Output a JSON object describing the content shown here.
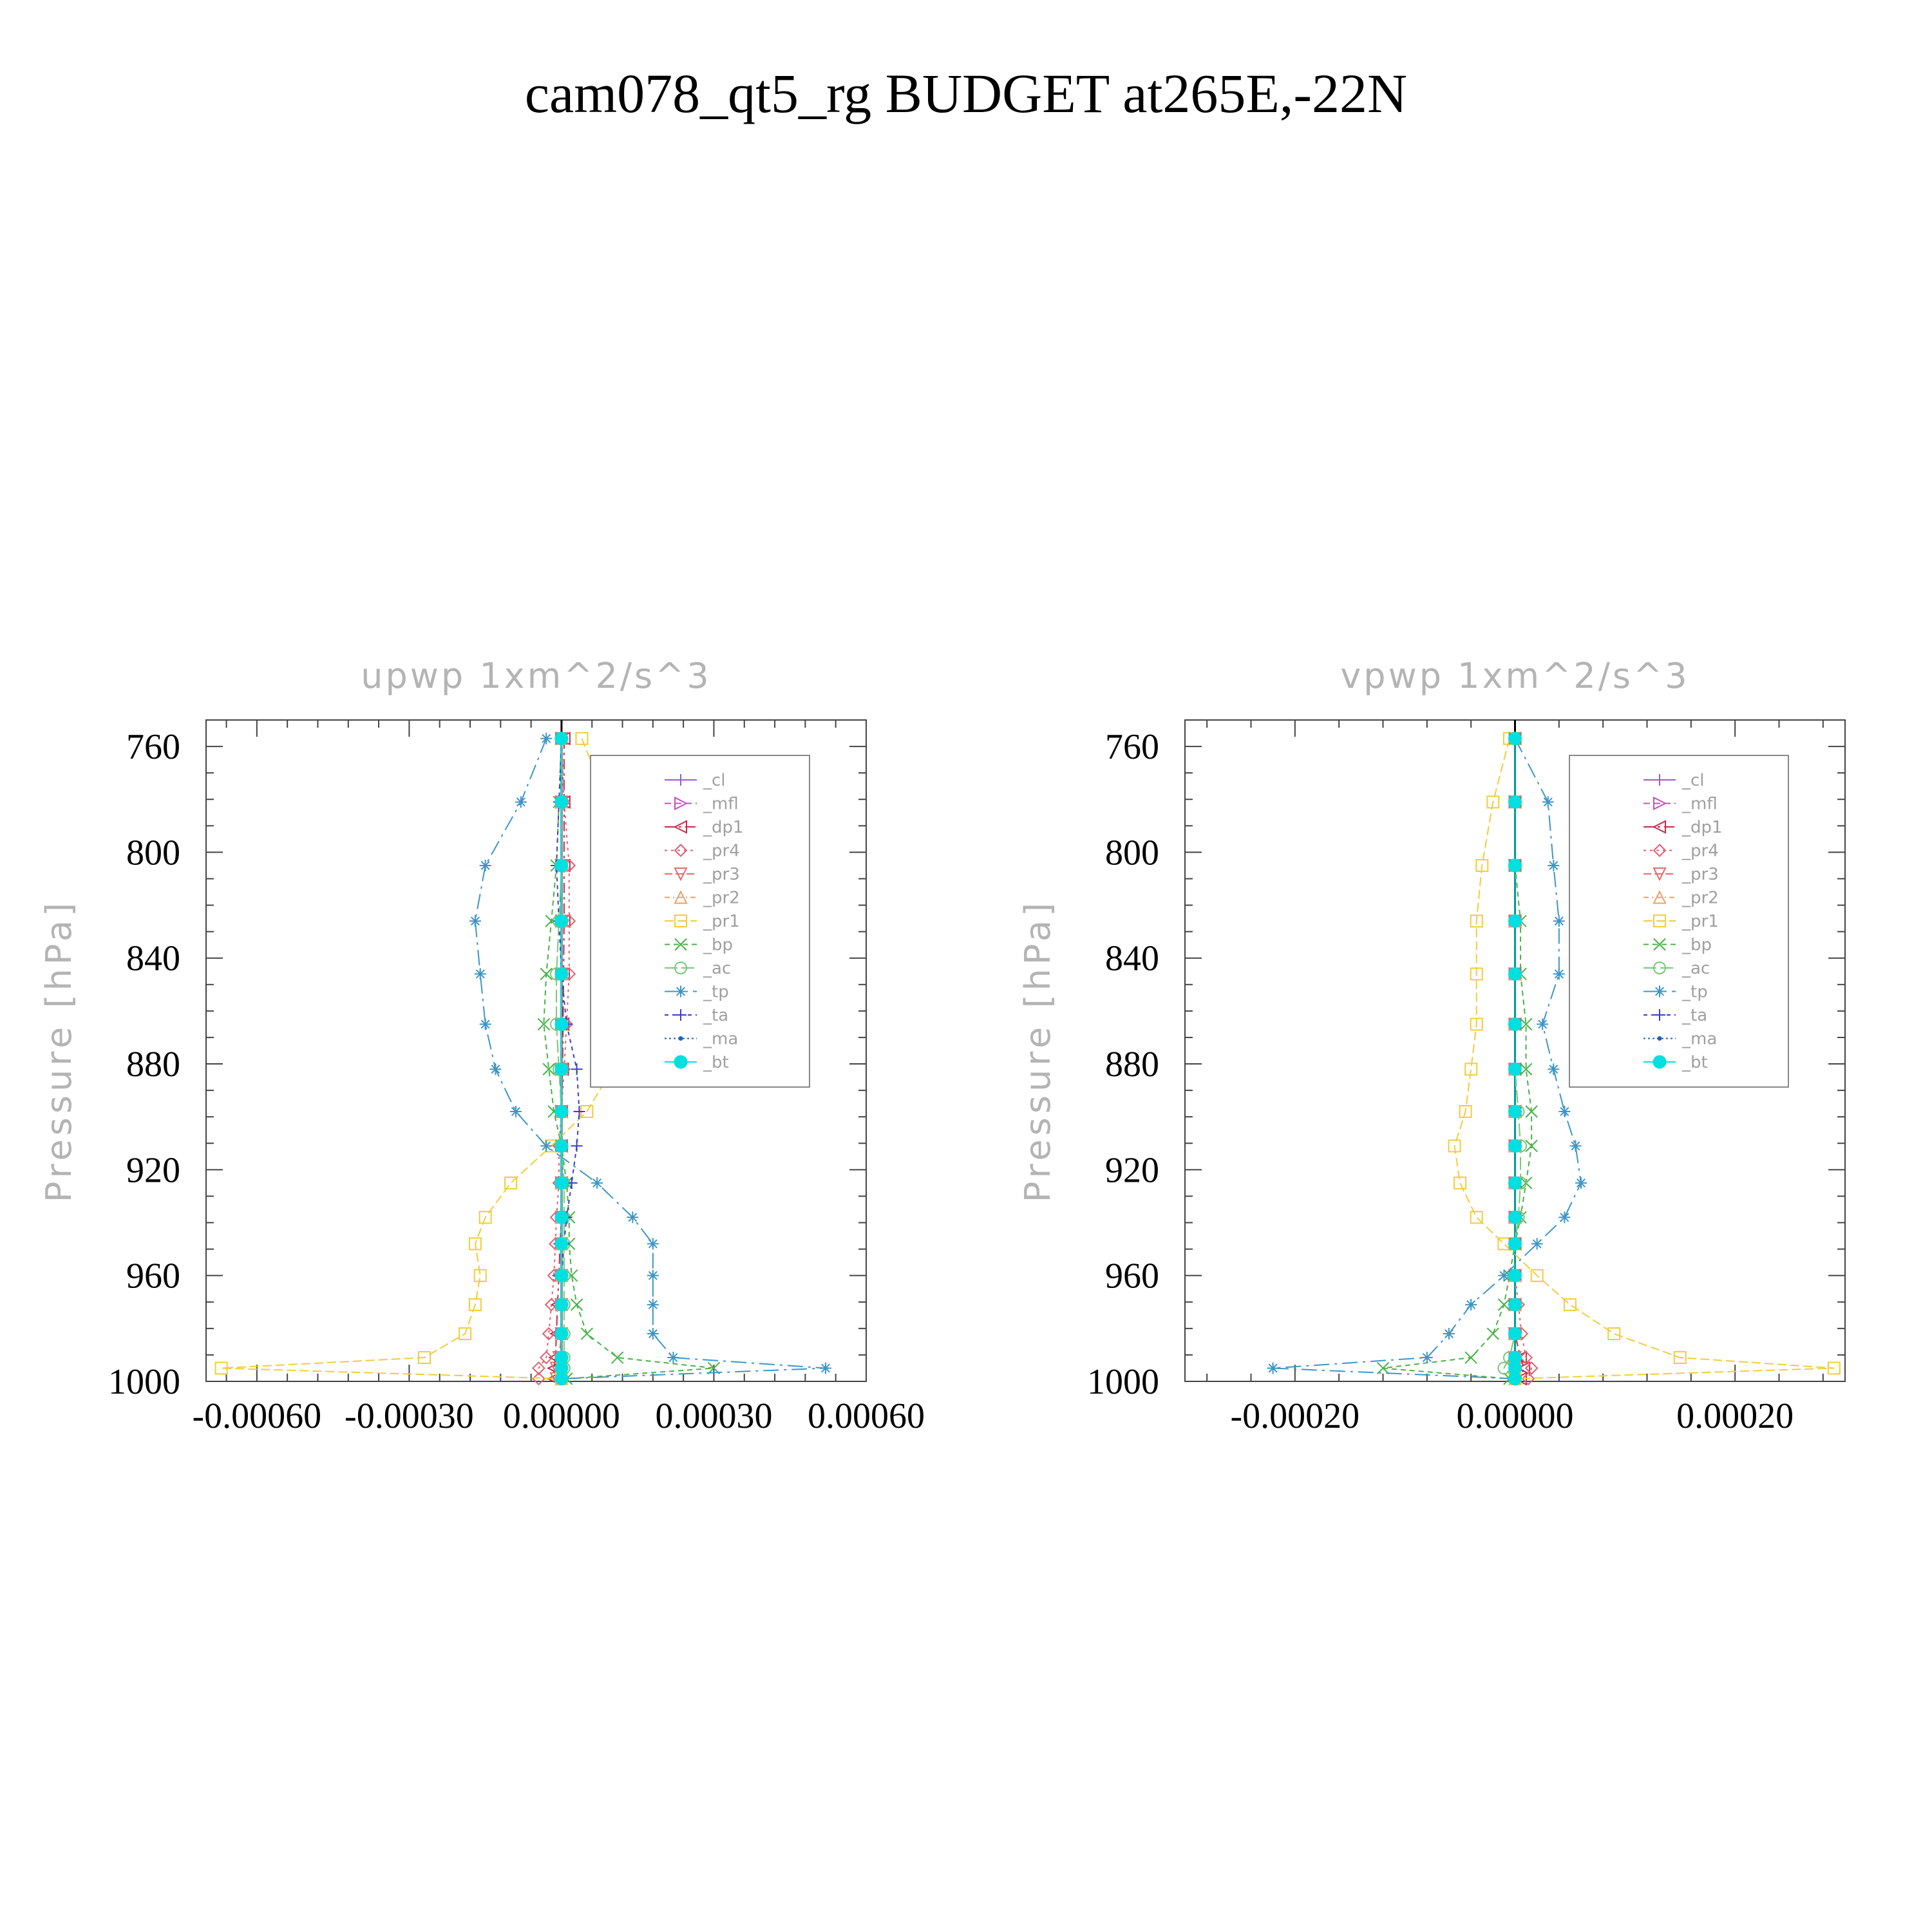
{
  "title": "cam078_qt5_rg  BUDGET at265E,-22N",
  "chart_data": [
    {
      "type": "line",
      "title": "upwp    1xm^2/s^3",
      "ylabel": "Pressure  [hPa]",
      "xlim": [
        -0.0007,
        0.0006
      ],
      "ylim": [
        1000,
        750
      ],
      "xticks": [
        -0.0006,
        -0.0003,
        0.0,
        0.0003,
        0.0006
      ],
      "xtick_labels": [
        "-0.00060",
        "-0.00030",
        "0.00000",
        "0.00030",
        "0.00060"
      ],
      "yticks": [
        760,
        800,
        840,
        880,
        920,
        960,
        1000
      ],
      "ytick_labels": [
        "760",
        "800",
        "840",
        "880",
        "920",
        "960",
        "1000"
      ],
      "legend": "inside top-right",
      "y": [
        757,
        781,
        805,
        826,
        846,
        865,
        882,
        898,
        911,
        925,
        938,
        948,
        960,
        971,
        982,
        991,
        995,
        999
      ],
      "series": [
        {
          "name": "_cl",
          "color": "#9b59d0",
          "marker": "plus",
          "values": [
            0,
            0,
            0,
            0,
            0,
            0,
            0,
            0,
            0,
            0,
            0,
            0,
            0,
            0,
            0,
            0,
            0,
            0
          ]
        },
        {
          "name": "_mfl",
          "color": "#c050c0",
          "marker": "tri-right",
          "values": [
            0,
            0,
            0,
            0,
            0,
            0,
            0,
            0,
            0,
            0,
            0,
            0,
            0,
            0,
            0,
            0,
            0,
            0
          ]
        },
        {
          "name": "_dp1",
          "color": "#c8284a",
          "marker": "tri-left",
          "values": [
            5e-06,
            5e-06,
            5e-06,
            5e-06,
            4e-06,
            3e-06,
            2e-06,
            0,
            0,
            0,
            0,
            -3e-06,
            -5e-06,
            -8e-06,
            -1e-05,
            -1.2e-05,
            -1.5e-05,
            -1.5e-05
          ]
        },
        {
          "name": "_pr4",
          "color": "#e06070",
          "marker": "diamond",
          "values": [
            0,
            5e-06,
            1.5e-05,
            1.5e-05,
            1.5e-05,
            1e-05,
            5e-06,
            0,
            -5e-06,
            -5e-06,
            -1e-05,
            -1.2e-05,
            -1.5e-05,
            -2e-05,
            -2.5e-05,
            -3e-05,
            -4.5e-05,
            -4.5e-05
          ]
        },
        {
          "name": "_pr3",
          "color": "#e86a6a",
          "marker": "tri-down",
          "values": [
            0,
            0,
            0,
            0,
            0,
            0,
            0,
            0,
            0,
            0,
            0,
            0,
            0,
            0,
            0,
            -5e-06,
            -1e-05,
            -1e-05
          ]
        },
        {
          "name": "_pr2",
          "color": "#f0a060",
          "marker": "tri-up",
          "values": [
            0,
            0,
            0,
            0,
            0,
            0,
            0,
            0,
            0,
            0,
            0,
            0,
            0,
            0,
            0,
            0,
            0,
            0
          ]
        },
        {
          "name": "_pr1",
          "color": "#f2cc3a",
          "marker": "square",
          "values": [
            4e-05,
            9e-05,
            0.00013,
            0.00016,
            0.00016,
            0.00013,
            0.0001,
            5e-05,
            -2e-05,
            -0.0001,
            -0.00015,
            -0.00017,
            -0.00016,
            -0.00017,
            -0.00019,
            -0.00027,
            -0.00067,
            0.0
          ]
        },
        {
          "name": "_bp",
          "color": "#46b446",
          "marker": "x",
          "values": [
            0,
            -5e-06,
            -1e-05,
            -2e-05,
            -3e-05,
            -3.5e-05,
            -2.5e-05,
            -1.5e-05,
            0,
            1e-05,
            1.5e-05,
            1.5e-05,
            2e-05,
            3e-05,
            5e-05,
            0.00011,
            0.0003,
            1e-05
          ]
        },
        {
          "name": "_ac",
          "color": "#78c878",
          "marker": "circle",
          "values": [
            0,
            0,
            0,
            -5e-06,
            -1e-05,
            -1e-05,
            -5e-06,
            0,
            0,
            5e-06,
            5e-06,
            5e-06,
            5e-06,
            5e-06,
            5e-06,
            5e-06,
            5e-06,
            0
          ]
        },
        {
          "name": "_tp",
          "color": "#3c96c8",
          "marker": "star",
          "values": [
            -3e-05,
            -8e-05,
            -0.00015,
            -0.00017,
            -0.00016,
            -0.00015,
            -0.00013,
            -9e-05,
            -3e-05,
            7e-05,
            0.00014,
            0.00018,
            0.00018,
            0.00018,
            0.00018,
            0.00022,
            0.00052,
            0.0
          ]
        },
        {
          "name": "_ta",
          "color": "#3c3ccc",
          "marker": "plus",
          "values": [
            0,
            -5e-06,
            -1e-05,
            -5e-06,
            0,
            1e-05,
            3e-05,
            3.5e-05,
            3e-05,
            2e-05,
            1e-05,
            5e-06,
            0,
            0,
            0,
            0,
            0,
            0
          ]
        },
        {
          "name": "_ma",
          "color": "#1e64b4",
          "marker": "dot",
          "values": [
            0,
            0,
            0,
            0,
            0,
            0,
            0,
            0,
            0,
            0,
            0,
            0,
            0,
            0,
            0,
            0,
            0,
            0
          ]
        },
        {
          "name": "_bt",
          "color": "#00e0e0",
          "marker": "filled-circle",
          "values": [
            0,
            0,
            0,
            0,
            0,
            0,
            0,
            0,
            0,
            0,
            0,
            0,
            0,
            0,
            0,
            0,
            0,
            0
          ]
        }
      ]
    },
    {
      "type": "line",
      "title": "vpwp    1xm^2/s^3",
      "ylabel": "Pressure  [hPa]",
      "xlim": [
        -0.0003,
        0.0003
      ],
      "ylim": [
        1000,
        750
      ],
      "xticks": [
        -0.0002,
        0.0,
        0.0002
      ],
      "xtick_labels": [
        "-0.00020",
        "0.00000",
        "0.00020"
      ],
      "yticks": [
        760,
        800,
        840,
        880,
        920,
        960,
        1000
      ],
      "ytick_labels": [
        "760",
        "800",
        "840",
        "880",
        "920",
        "960",
        "1000"
      ],
      "legend": "inside top-right",
      "y": [
        757,
        781,
        805,
        826,
        846,
        865,
        882,
        898,
        911,
        925,
        938,
        948,
        960,
        971,
        982,
        991,
        995,
        999
      ],
      "series": [
        {
          "name": "_cl",
          "color": "#9b59d0",
          "marker": "plus",
          "values": [
            0,
            0,
            0,
            0,
            0,
            0,
            0,
            0,
            0,
            0,
            0,
            0,
            0,
            0,
            0,
            0,
            0,
            0
          ]
        },
        {
          "name": "_mfl",
          "color": "#c050c0",
          "marker": "tri-right",
          "values": [
            0,
            0,
            0,
            0,
            0,
            0,
            0,
            0,
            0,
            0,
            0,
            0,
            0,
            0,
            0,
            0,
            0,
            0
          ]
        },
        {
          "name": "_dp1",
          "color": "#c8284a",
          "marker": "tri-left",
          "values": [
            0,
            0,
            0,
            0,
            0,
            0,
            0,
            0,
            0,
            0,
            0,
            0,
            0,
            0,
            0,
            5e-06,
            8e-06,
            5e-06
          ]
        },
        {
          "name": "_pr4",
          "color": "#e06070",
          "marker": "diamond",
          "values": [
            0,
            0,
            0,
            0,
            0,
            0,
            0,
            0,
            0,
            0,
            0,
            0,
            0,
            3e-06,
            6e-06,
            1e-05,
            1.5e-05,
            1.2e-05
          ]
        },
        {
          "name": "_pr3",
          "color": "#e86a6a",
          "marker": "tri-down",
          "values": [
            0,
            0,
            0,
            0,
            0,
            0,
            0,
            0,
            0,
            0,
            0,
            0,
            0,
            0,
            0,
            0,
            0,
            0
          ]
        },
        {
          "name": "_pr2",
          "color": "#f0a060",
          "marker": "tri-up",
          "values": [
            0,
            0,
            0,
            0,
            0,
            0,
            0,
            0,
            0,
            0,
            0,
            0,
            0,
            0,
            0,
            0,
            0,
            0
          ]
        },
        {
          "name": "_pr1",
          "color": "#f2cc3a",
          "marker": "square",
          "values": [
            -5e-06,
            -2e-05,
            -3e-05,
            -3.5e-05,
            -3.5e-05,
            -3.5e-05,
            -4e-05,
            -4.5e-05,
            -5.5e-05,
            -5e-05,
            -3.5e-05,
            -1e-05,
            2e-05,
            5e-05,
            9e-05,
            0.00015,
            0.00029,
            0.0
          ]
        },
        {
          "name": "_bp",
          "color": "#46b446",
          "marker": "x",
          "values": [
            0,
            0,
            0,
            5e-06,
            5e-06,
            1e-05,
            1e-05,
            1.5e-05,
            1.5e-05,
            1e-05,
            5e-06,
            0,
            -5e-06,
            -1e-05,
            -2e-05,
            -4e-05,
            -0.00012,
            -5e-06
          ]
        },
        {
          "name": "_ac",
          "color": "#78c878",
          "marker": "circle",
          "values": [
            0,
            0,
            0,
            0,
            0,
            0,
            0,
            3e-06,
            5e-06,
            5e-06,
            3e-06,
            0,
            0,
            0,
            0,
            -5e-06,
            -1e-05,
            0
          ]
        },
        {
          "name": "_tp",
          "color": "#3c96c8",
          "marker": "star",
          "values": [
            0,
            3e-05,
            3.5e-05,
            4e-05,
            4e-05,
            2.5e-05,
            3.5e-05,
            4.5e-05,
            5.5e-05,
            6e-05,
            4.5e-05,
            2e-05,
            -1e-05,
            -4e-05,
            -6e-05,
            -8e-05,
            -0.00022,
            0.0
          ]
        },
        {
          "name": "_ta",
          "color": "#3c3ccc",
          "marker": "plus",
          "values": [
            0,
            0,
            0,
            0,
            0,
            0,
            0,
            0,
            0,
            0,
            0,
            0,
            0,
            0,
            0,
            0,
            0,
            0
          ]
        },
        {
          "name": "_ma",
          "color": "#1e64b4",
          "marker": "dot",
          "values": [
            0,
            0,
            0,
            0,
            0,
            0,
            0,
            0,
            0,
            0,
            0,
            0,
            0,
            0,
            0,
            0,
            0,
            0
          ]
        },
        {
          "name": "_bt",
          "color": "#00e0e0",
          "marker": "filled-circle",
          "values": [
            0,
            0,
            0,
            0,
            0,
            0,
            0,
            0,
            0,
            0,
            0,
            0,
            0,
            0,
            0,
            0,
            0,
            0
          ]
        }
      ]
    }
  ]
}
